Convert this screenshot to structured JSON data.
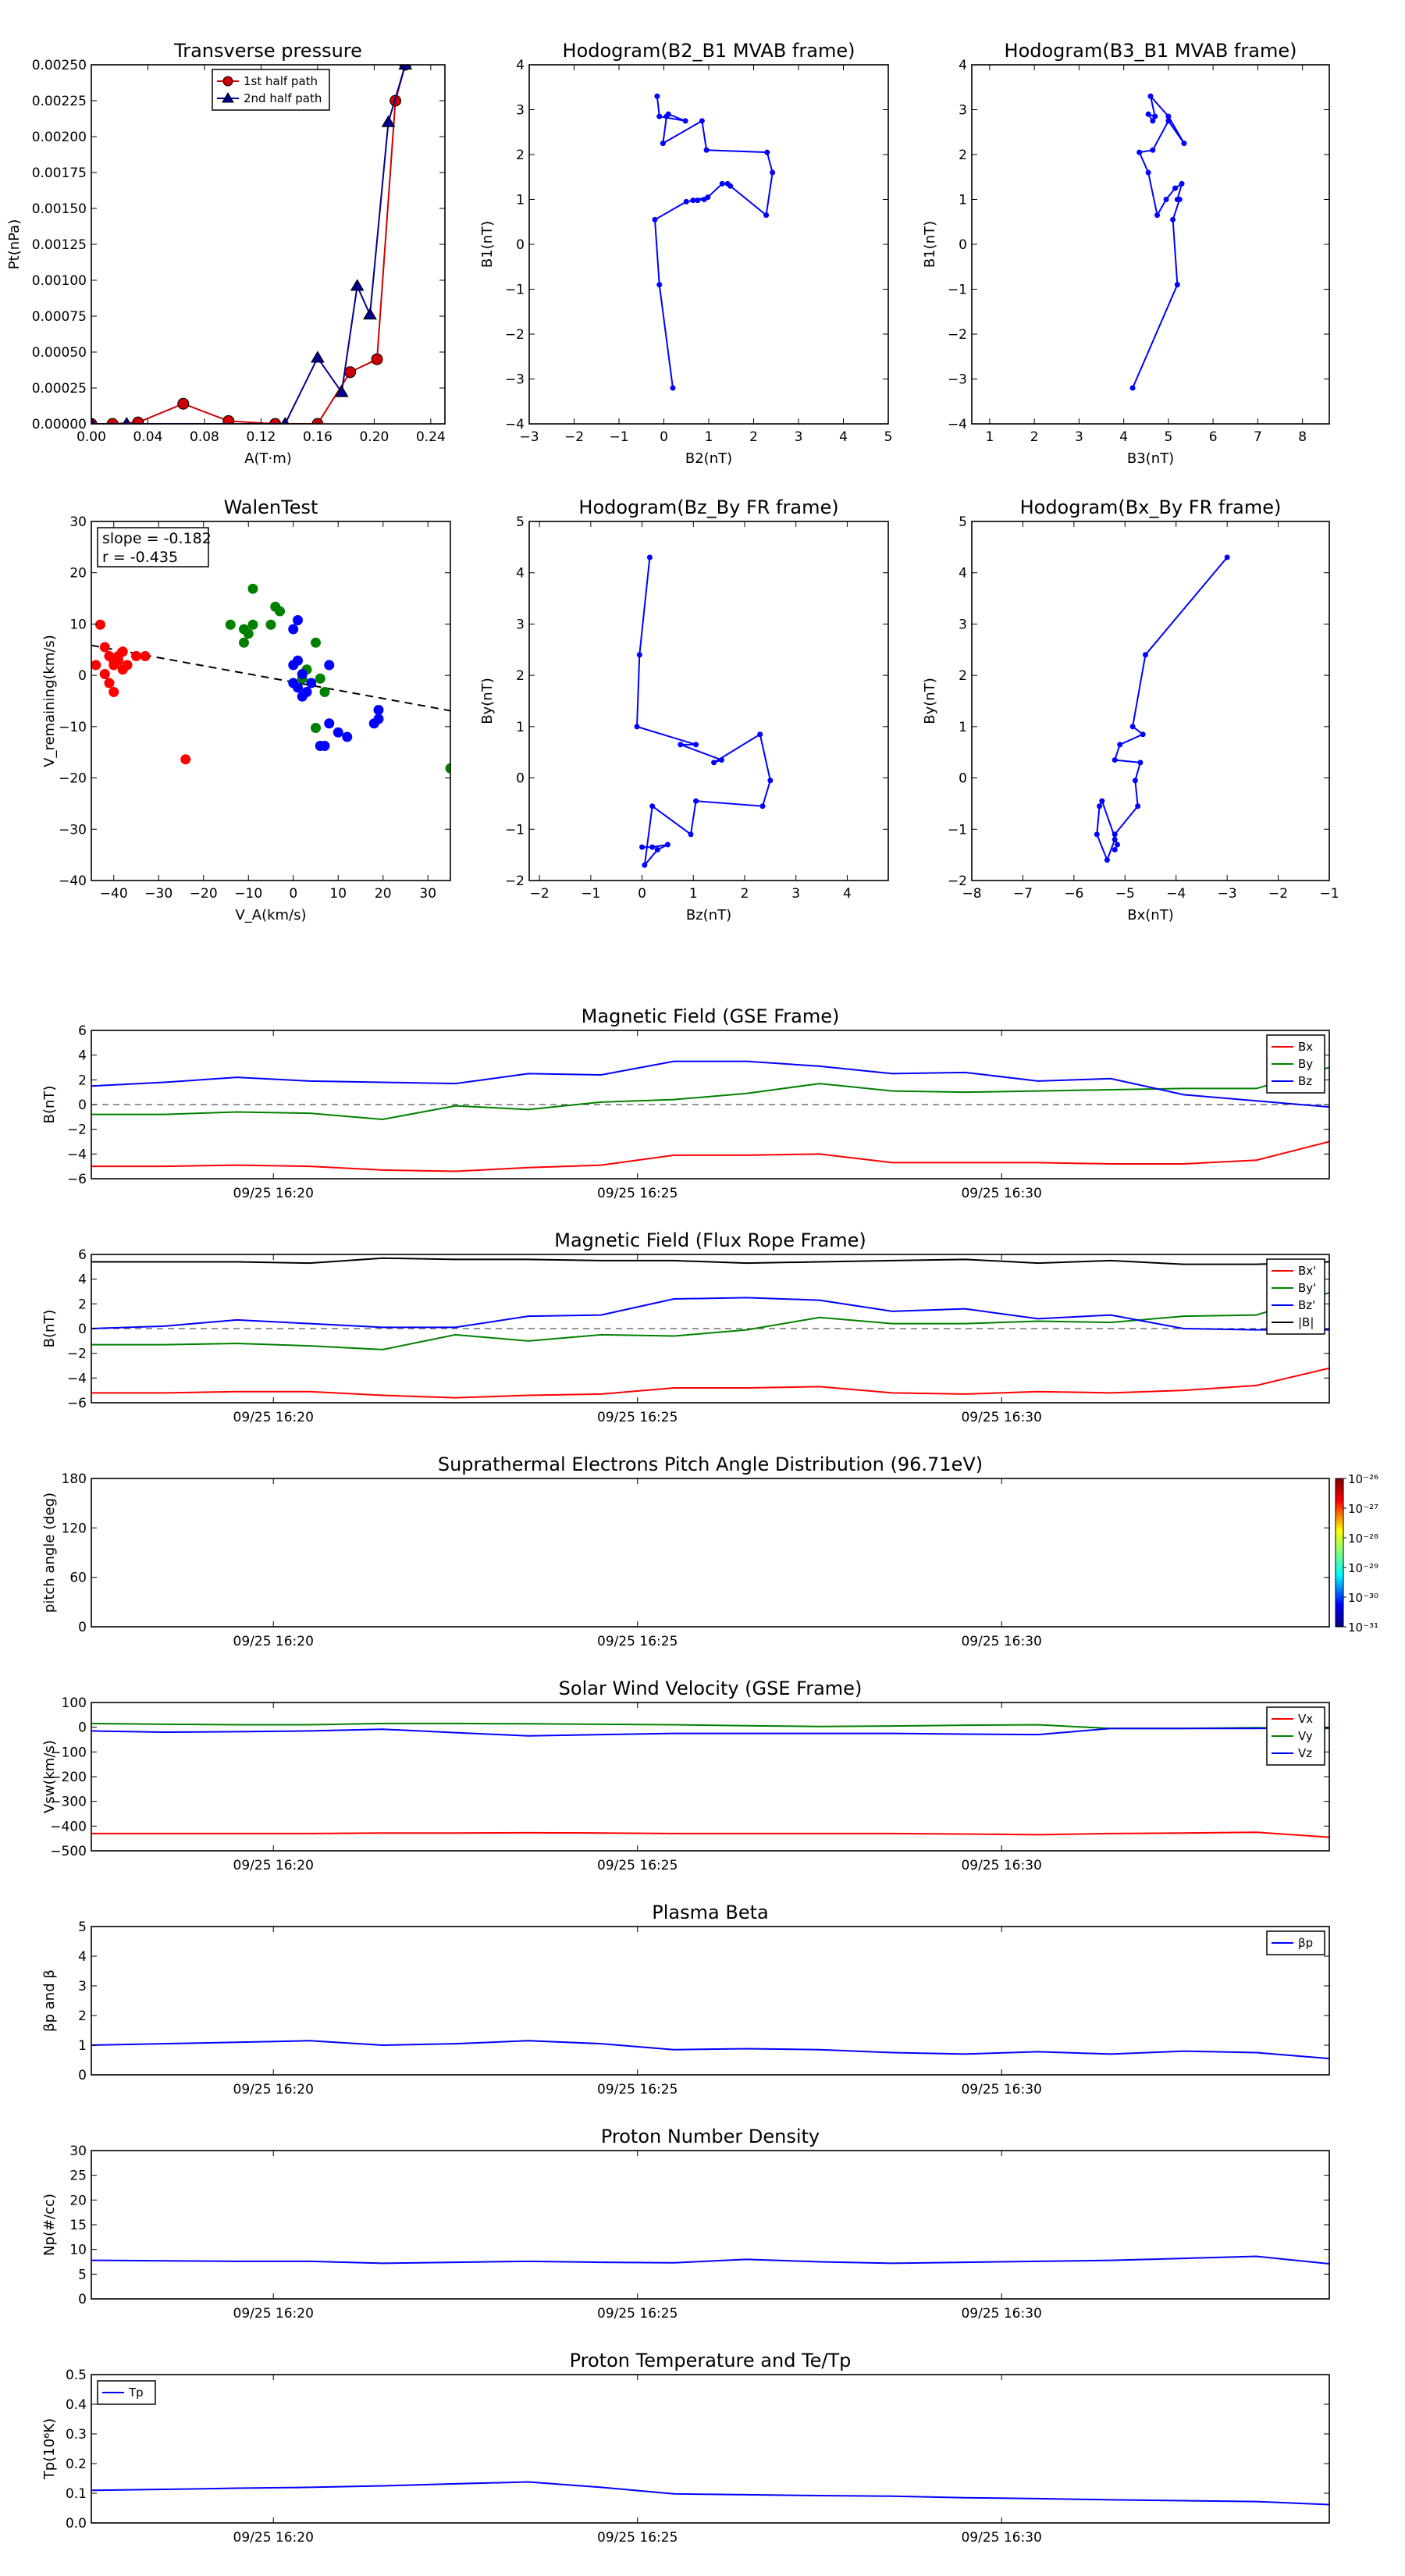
{
  "chart_data": [
    {
      "id": "tp",
      "type": "line",
      "title": "Transverse pressure",
      "xlabel": "A(T·m)",
      "ylabel": "Pt(nPa)",
      "xlim": [
        0,
        0.25
      ],
      "ylim": [
        0,
        0.0025
      ],
      "xticks": [
        "0.00",
        "0.04",
        "0.08",
        "0.12",
        "0.16",
        "0.20",
        "0.24"
      ],
      "yticks": [
        "0.00000",
        "0.00025",
        "0.00050",
        "0.00075",
        "0.00100",
        "0.00125",
        "0.00150",
        "0.00175",
        "0.00200",
        "0.00225",
        "0.00250"
      ],
      "legend": "upper center",
      "series": [
        {
          "name": "1st half path",
          "color": "#cc0000",
          "marker": "circle",
          "x": [
            0.0,
            0.015,
            0.033,
            0.065,
            0.097,
            0.13,
            0.16,
            0.183,
            0.202,
            0.215,
            0.222
          ],
          "y": [
            0.0,
            0.0,
            1e-05,
            0.00014,
            2e-05,
            0.0,
            0.0,
            0.00036,
            0.00045,
            0.00225,
            0.0025
          ]
        },
        {
          "name": "2nd half path",
          "color": "#00008b",
          "marker": "triangle",
          "x": [
            0.0,
            0.025,
            0.137,
            0.16,
            0.177,
            0.188,
            0.197,
            0.21,
            0.222
          ],
          "y": [
            0.0,
            0.0,
            0.0,
            0.00046,
            0.00022,
            0.00096,
            0.00076,
            0.0021,
            0.0025
          ]
        }
      ]
    },
    {
      "id": "h1",
      "type": "line",
      "title": "Hodogram(B2_B1 MVAB frame)",
      "xlabel": "B2(nT)",
      "ylabel": "B1(nT)",
      "xlim": [
        -3,
        5
      ],
      "ylim": [
        -4,
        4
      ],
      "xticks": [
        "−3",
        "−2",
        "−1",
        "0",
        "1",
        "2",
        "3",
        "4",
        "5"
      ],
      "yticks": [
        "−4",
        "−3",
        "−2",
        "−1",
        "0",
        "1",
        "2",
        "3",
        "4"
      ],
      "series": [
        {
          "color": "#0000ff",
          "x": [
            0.2,
            -0.1,
            -0.2,
            0.5,
            0.9,
            0.75,
            0.65,
            0.98,
            1.3,
            1.42,
            1.48,
            2.28,
            2.42,
            2.3,
            0.95,
            0.85,
            -0.02,
            0.06,
            0.1,
            0.48,
            -0.1,
            -0.15
          ],
          "y": [
            -3.2,
            -0.9,
            0.55,
            0.95,
            1.0,
            0.98,
            0.98,
            1.05,
            1.35,
            1.35,
            1.3,
            0.65,
            1.6,
            2.05,
            2.1,
            2.75,
            2.25,
            2.85,
            2.9,
            2.75,
            2.85,
            3.3
          ]
        }
      ]
    },
    {
      "id": "h2",
      "type": "line",
      "title": "Hodogram(B3_B1 MVAB frame)",
      "xlabel": "B3(nT)",
      "ylabel": "B1(nT)",
      "xlim": [
        0.6,
        8.6
      ],
      "ylim": [
        -4,
        4
      ],
      "xticks": [
        "1",
        "2",
        "3",
        "4",
        "5",
        "6",
        "7",
        "8"
      ],
      "yticks": [
        "−4",
        "−3",
        "−2",
        "−1",
        "0",
        "1",
        "2",
        "3",
        "4"
      ],
      "series": [
        {
          "color": "#0000ff",
          "x": [
            4.2,
            5.2,
            5.1,
            5.25,
            5.2,
            5.3,
            5.15,
            4.95,
            4.75,
            4.55,
            4.35,
            4.65,
            5.0,
            5.35,
            5.0,
            4.6,
            4.7,
            4.55,
            4.65
          ],
          "y": [
            -3.2,
            -0.9,
            0.55,
            1.0,
            1.0,
            1.35,
            1.25,
            1.0,
            0.65,
            1.6,
            2.05,
            2.1,
            2.75,
            2.25,
            2.85,
            3.3,
            2.85,
            2.9,
            2.75
          ]
        }
      ]
    },
    {
      "id": "walen",
      "type": "scatter",
      "title": "WalenTest",
      "xlabel": "V_A(km/s)",
      "ylabel": "V_remaining(km/s)",
      "xlim": [
        -45,
        35
      ],
      "ylim": [
        -45,
        35
      ],
      "xticks": [
        "−40",
        "−30",
        "−20",
        "−10",
        "0",
        "10",
        "20",
        "30"
      ],
      "yticks": [
        "−40",
        "−30",
        "−20",
        "−10",
        "0",
        "10",
        "20",
        "30"
      ],
      "annotation_slope": "slope = -0.182",
      "annotation_r": "r = -0.435",
      "fit_line": {
        "slope": -0.182,
        "intercept": -0.8
      },
      "series": [
        {
          "color": "#ff0000",
          "x": [
            -44,
            -42,
            -41,
            -43,
            -40,
            -39,
            -38,
            -37,
            -35,
            -33,
            -42,
            -41,
            -40,
            -39,
            -24,
            -38,
            -40
          ],
          "y": [
            3,
            7,
            5,
            12,
            3,
            4,
            2,
            3,
            5,
            5,
            1,
            -1,
            -3,
            5,
            -18,
            6,
            4
          ]
        },
        {
          "color": "#008000",
          "x": [
            -9,
            -14,
            -11,
            -10,
            -11,
            -9,
            -4,
            -3,
            -5,
            3,
            2,
            5,
            6,
            7,
            5,
            35
          ],
          "y": [
            20,
            12,
            11,
            10,
            8,
            12,
            16,
            15,
            12,
            2,
            0,
            8,
            0,
            -3,
            -11,
            -20
          ]
        },
        {
          "color": "#0000ff",
          "x": [
            1,
            0,
            1,
            0,
            2,
            0,
            1,
            2,
            3,
            4,
            6,
            7,
            8,
            10,
            12,
            18,
            19,
            19,
            8
          ],
          "y": [
            13,
            11,
            4,
            3,
            1,
            -1,
            -2,
            -4,
            -3,
            -1,
            -15,
            -15,
            -10,
            -12,
            -13,
            -10,
            -7,
            -9,
            3
          ]
        }
      ]
    },
    {
      "id": "h3",
      "type": "line",
      "title": "Hodogram(Bz_By FR frame)",
      "xlabel": "Bz(nT)",
      "ylabel": "By(nT)",
      "xlim": [
        -2.2,
        4.8
      ],
      "ylim": [
        -2,
        5
      ],
      "xticks": [
        "−2",
        "−1",
        "0",
        "1",
        "2",
        "3",
        "4"
      ],
      "yticks": [
        "−2",
        "−1",
        "0",
        "1",
        "2",
        "3",
        "4",
        "5"
      ],
      "series": [
        {
          "color": "#0000ff",
          "x": [
            0.15,
            -0.05,
            -0.1,
            1.05,
            0.75,
            1.55,
            1.4,
            2.3,
            2.5,
            2.35,
            1.05,
            0.95,
            0.2,
            0.05,
            0.3,
            0.5,
            0.2,
            0.0
          ],
          "y": [
            4.3,
            2.4,
            1.0,
            0.65,
            0.65,
            0.35,
            0.3,
            0.85,
            -0.05,
            -0.55,
            -0.45,
            -1.1,
            -0.55,
            -1.7,
            -1.4,
            -1.3,
            -1.35,
            -1.35
          ]
        }
      ]
    },
    {
      "id": "h4",
      "type": "line",
      "title": "Hodogram(Bx_By FR frame)",
      "xlabel": "Bx(nT)",
      "ylabel": "By(nT)",
      "xlim": [
        -8,
        -1
      ],
      "ylim": [
        -2,
        5
      ],
      "xticks": [
        "−8",
        "−7",
        "−6",
        "−5",
        "−4",
        "−3",
        "−2",
        "−1"
      ],
      "yticks": [
        "−2",
        "−1",
        "0",
        "1",
        "2",
        "3",
        "4",
        "5"
      ],
      "series": [
        {
          "color": "#0000ff",
          "x": [
            -3.0,
            -4.6,
            -4.85,
            -4.65,
            -5.1,
            -5.2,
            -4.7,
            -4.8,
            -4.75,
            -5.2,
            -5.2,
            -5.35,
            -5.55,
            -5.5,
            -5.45,
            -5.15,
            -5.2
          ],
          "y": [
            4.3,
            2.4,
            1.0,
            0.85,
            0.65,
            0.35,
            0.3,
            -0.05,
            -0.55,
            -1.1,
            -1.2,
            -1.6,
            -1.1,
            -0.55,
            -0.45,
            -1.3,
            -1.4
          ]
        }
      ]
    },
    {
      "id": "bgse",
      "type": "line",
      "title": "Magnetic Field (GSE Frame)",
      "ylabel": "B(nT)",
      "xlim": [
        0,
        17
      ],
      "ylim": [
        -6,
        6
      ],
      "yticks": [
        "−6",
        "−4",
        "−2",
        "0",
        "2",
        "4",
        "6"
      ],
      "xtick_labels": [
        "09/25 16:20",
        "09/25 16:25",
        "09/25 16:30"
      ],
      "xtick_positions": [
        2.5,
        7.5,
        12.5
      ],
      "zero_line": true,
      "legend": "upper right",
      "series": [
        {
          "name": "Bx",
          "color": "#ff0000",
          "y": [
            -5.0,
            -5.0,
            -4.9,
            -5.0,
            -5.3,
            -5.4,
            -5.1,
            -4.9,
            -4.1,
            -4.1,
            -4.0,
            -4.7,
            -4.7,
            -4.7,
            -4.8,
            -4.8,
            -4.5,
            -3.0
          ]
        },
        {
          "name": "By",
          "color": "#008000",
          "y": [
            -0.8,
            -0.8,
            -0.6,
            -0.7,
            -1.2,
            -0.1,
            -0.4,
            0.2,
            0.4,
            0.9,
            1.7,
            1.1,
            1.0,
            1.1,
            1.2,
            1.3,
            1.3,
            3.0
          ]
        },
        {
          "name": "Bz",
          "color": "#0000ff",
          "y": [
            1.5,
            1.8,
            2.2,
            1.9,
            1.8,
            1.7,
            2.5,
            2.4,
            3.5,
            3.5,
            3.1,
            2.5,
            2.6,
            1.9,
            2.1,
            0.8,
            0.3,
            -0.2
          ]
        }
      ]
    },
    {
      "id": "bfr",
      "type": "line",
      "title": "Magnetic Field (Flux Rope Frame)",
      "ylabel": "B(nT)",
      "xlim": [
        0,
        17
      ],
      "ylim": [
        -6,
        6
      ],
      "yticks": [
        "−6",
        "−4",
        "−2",
        "0",
        "2",
        "4",
        "6"
      ],
      "xtick_labels": [
        "09/25 16:20",
        "09/25 16:25",
        "09/25 16:30"
      ],
      "xtick_positions": [
        2.5,
        7.5,
        12.5
      ],
      "zero_line": true,
      "legend": "upper right",
      "series": [
        {
          "name": "Bx'",
          "color": "#ff0000",
          "y": [
            -5.2,
            -5.2,
            -5.1,
            -5.1,
            -5.4,
            -5.6,
            -5.4,
            -5.3,
            -4.8,
            -4.8,
            -4.7,
            -5.2,
            -5.3,
            -5.1,
            -5.2,
            -5.0,
            -4.6,
            -3.2
          ]
        },
        {
          "name": "By'",
          "color": "#008000",
          "y": [
            -1.3,
            -1.3,
            -1.2,
            -1.4,
            -1.7,
            -0.5,
            -1.0,
            -0.5,
            -0.6,
            -0.1,
            0.9,
            0.4,
            0.4,
            0.6,
            0.5,
            1.0,
            1.1,
            2.9
          ]
        },
        {
          "name": "Bz'",
          "color": "#0000ff",
          "y": [
            0.0,
            0.2,
            0.7,
            0.4,
            0.1,
            0.1,
            1.0,
            1.1,
            2.4,
            2.5,
            2.3,
            1.4,
            1.6,
            0.8,
            1.1,
            0.0,
            -0.1,
            -0.1
          ]
        },
        {
          "name": "|B|",
          "color": "#000000",
          "y": [
            5.4,
            5.4,
            5.4,
            5.3,
            5.7,
            5.6,
            5.6,
            5.5,
            5.5,
            5.3,
            5.4,
            5.5,
            5.6,
            5.3,
            5.5,
            5.2,
            5.2,
            5.4
          ]
        }
      ]
    },
    {
      "id": "pad",
      "type": "heatmap",
      "title": "Suprathermal Electrons Pitch Angle Distribution (96.71eV)",
      "ylabel": "pitch angle (deg)",
      "xlim": [
        0,
        17
      ],
      "ylim": [
        0,
        180
      ],
      "yticks": [
        "0",
        "60",
        "120",
        "180"
      ],
      "xtick_labels": [
        "09/25 16:20",
        "09/25 16:25",
        "09/25 16:30"
      ],
      "xtick_positions": [
        2.5,
        7.5,
        12.5
      ],
      "colorbar_labels": [
        "10⁻²⁶",
        "10⁻²⁷",
        "10⁻²⁸",
        "10⁻²⁹",
        "10⁻³⁰",
        "10⁻³¹"
      ]
    },
    {
      "id": "vsw",
      "type": "line",
      "title": "Solar Wind Velocity (GSE Frame)",
      "ylabel": "Vsw(km/s)",
      "xlim": [
        0,
        17
      ],
      "ylim": [
        -500,
        100
      ],
      "yticks": [
        "−500",
        "−400",
        "−300",
        "−200",
        "−100",
        "0",
        "100"
      ],
      "xtick_labels": [
        "09/25 16:20",
        "09/25 16:25",
        "09/25 16:30"
      ],
      "xtick_positions": [
        2.5,
        7.5,
        12.5
      ],
      "legend": "upper right",
      "series": [
        {
          "name": "Vx",
          "color": "#ff0000",
          "y": [
            -430,
            -430,
            -430,
            -430,
            -428,
            -428,
            -427,
            -428,
            -430,
            -430,
            -430,
            -430,
            -432,
            -435,
            -430,
            -428,
            -425,
            -445
          ]
        },
        {
          "name": "Vy",
          "color": "#008000",
          "y": [
            15,
            12,
            10,
            10,
            15,
            15,
            14,
            12,
            10,
            6,
            3,
            5,
            8,
            10,
            -5,
            -5,
            -2,
            -5
          ]
        },
        {
          "name": "Vz",
          "color": "#0000ff",
          "y": [
            -15,
            -20,
            -18,
            -15,
            -8,
            -22,
            -35,
            -30,
            -25,
            -25,
            -25,
            -25,
            -28,
            -30,
            -5,
            -5,
            -5,
            -2
          ]
        }
      ]
    },
    {
      "id": "beta",
      "type": "line",
      "title": "Plasma Beta",
      "ylabel": "βp and β",
      "xlim": [
        0,
        17
      ],
      "ylim": [
        0,
        5
      ],
      "yticks": [
        "0",
        "1",
        "2",
        "3",
        "4",
        "5"
      ],
      "xtick_labels": [
        "09/25 16:20",
        "09/25 16:25",
        "09/25 16:30"
      ],
      "xtick_positions": [
        2.5,
        7.5,
        12.5
      ],
      "legend": "upper right",
      "series": [
        {
          "name": "βp",
          "color": "#0000ff",
          "y": [
            1.0,
            1.05,
            1.1,
            1.15,
            1.0,
            1.05,
            1.15,
            1.05,
            0.85,
            0.88,
            0.85,
            0.75,
            0.7,
            0.78,
            0.7,
            0.8,
            0.75,
            0.55
          ]
        }
      ]
    },
    {
      "id": "np",
      "type": "line",
      "title": "Proton Number Density",
      "ylabel": "Np(#/cc)",
      "xlim": [
        0,
        17
      ],
      "ylim": [
        0,
        30
      ],
      "yticks": [
        "0",
        "5",
        "10",
        "15",
        "20",
        "25",
        "30"
      ],
      "xtick_labels": [
        "09/25 16:20",
        "09/25 16:25",
        "09/25 16:30"
      ],
      "xtick_positions": [
        2.5,
        7.5,
        12.5
      ],
      "series": [
        {
          "color": "#0000ff",
          "y": [
            7.8,
            7.7,
            7.6,
            7.6,
            7.2,
            7.4,
            7.6,
            7.4,
            7.3,
            8.0,
            7.5,
            7.2,
            7.4,
            7.6,
            7.8,
            8.2,
            8.6,
            7.1
          ]
        }
      ]
    },
    {
      "id": "tpt",
      "type": "line",
      "title": "Proton Temperature and Te/Tp",
      "ylabel": "Tp(10⁶K)",
      "xlim": [
        0,
        17
      ],
      "ylim": [
        0,
        0.5
      ],
      "yticks": [
        "0.0",
        "0.1",
        "0.2",
        "0.3",
        "0.4",
        "0.5"
      ],
      "xtick_labels": [
        "09/25 16:20",
        "09/25 16:25",
        "09/25 16:30"
      ],
      "xtick_positions": [
        2.5,
        7.5,
        12.5
      ],
      "legend": "upper left",
      "series": [
        {
          "name": "Tp",
          "color": "#0000ff",
          "y": [
            0.11,
            0.113,
            0.117,
            0.12,
            0.125,
            0.132,
            0.138,
            0.12,
            0.098,
            0.095,
            0.092,
            0.09,
            0.085,
            0.082,
            0.078,
            0.075,
            0.072,
            0.062
          ]
        }
      ]
    }
  ]
}
